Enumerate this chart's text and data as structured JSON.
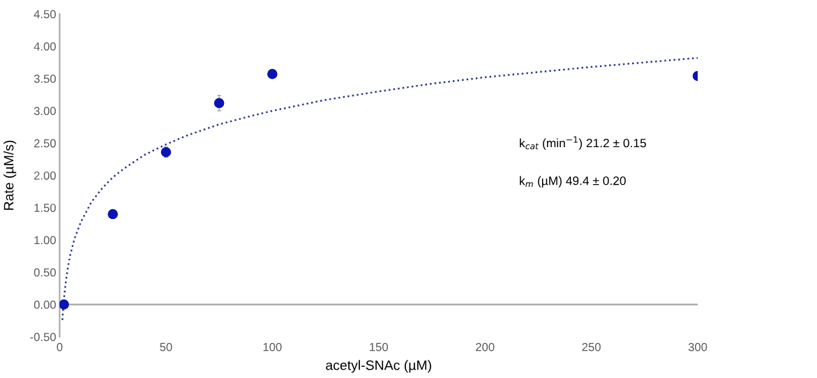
{
  "chart_data": {
    "type": "scatter",
    "xlabel": "acetyl-SNAc (µM)",
    "ylabel": "Rate (µM/s)",
    "x": [
      2,
      25,
      50,
      75,
      100,
      300
    ],
    "series": [
      {
        "color": "#0a14b4",
        "values": [
          0.0,
          1.4,
          2.36,
          3.12,
          3.57,
          3.54
        ],
        "errors": [
          null,
          null,
          0.08,
          0.12,
          null,
          null
        ],
        "marker": "circle"
      },
      {
        "type": "line",
        "color": "#2a3596",
        "line_style": "dotted",
        "x": [
          1.3,
          1.6,
          2,
          3,
          4,
          5,
          7,
          10,
          15,
          20,
          25,
          30,
          40,
          50,
          60,
          75,
          90,
          100,
          125,
          150,
          175,
          200,
          225,
          250,
          275,
          300
        ],
        "values": [
          -0.24,
          -0.08,
          0.08,
          0.38,
          0.6,
          0.77,
          1.02,
          1.28,
          1.59,
          1.8,
          1.97,
          2.1,
          2.32,
          2.48,
          2.62,
          2.79,
          2.92,
          3.0,
          3.17,
          3.3,
          3.42,
          3.52,
          3.6,
          3.68,
          3.75,
          3.82
        ]
      }
    ],
    "xlim": [
      0,
      300
    ],
    "ylim": [
      -0.5,
      4.5
    ],
    "xticks": [
      0,
      50,
      100,
      150,
      200,
      250,
      300
    ],
    "yticks": [
      {
        "value": -0.5,
        "label": "-0.50"
      },
      {
        "value": 0,
        "label": "0.00"
      },
      {
        "value": 0.5,
        "label": "0.50"
      },
      {
        "value": 1,
        "label": "1.00"
      },
      {
        "value": 1.5,
        "label": "1.50"
      },
      {
        "value": 2,
        "label": "2.00"
      },
      {
        "value": 2.5,
        "label": "2.50"
      },
      {
        "value": 3,
        "label": "3.00"
      },
      {
        "value": 3.5,
        "label": "3.50"
      },
      {
        "value": 4,
        "label": "4.00"
      },
      {
        "value": 4.5,
        "label": "4.50"
      }
    ],
    "grid": false,
    "legend": false,
    "ref_lines": [
      {
        "axis": "y",
        "value": 0,
        "color": "#a6a6a6"
      }
    ],
    "annotations": [
      "k$_{cat}$ (min$^{−1}$) 21.2 ± 0.15",
      "k$_{m}$ (µM) 49.4 ± 0.20"
    ]
  }
}
